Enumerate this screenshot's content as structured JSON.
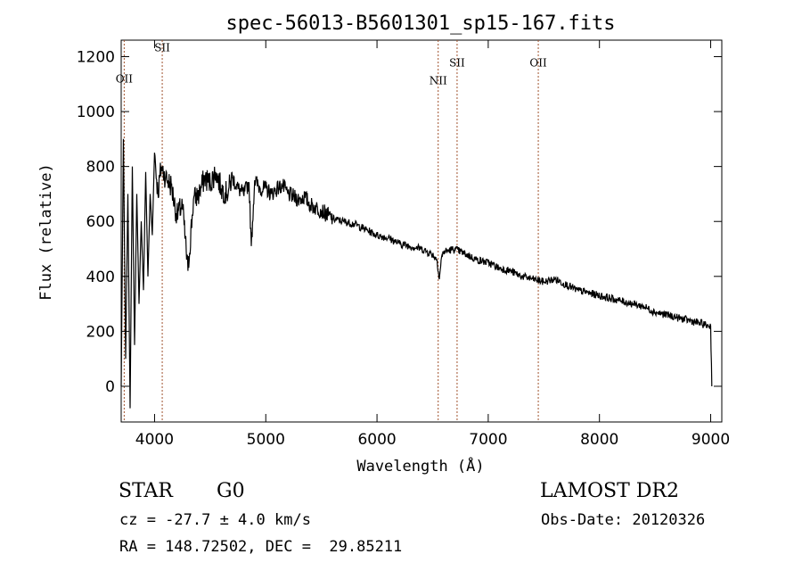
{
  "chart_data": {
    "type": "line",
    "title": "spec-56013-B5601301_sp15-167.fits",
    "xlabel": "Wavelength (Å)",
    "ylabel": "Flux (relative)",
    "xlim": [
      3700,
      9100
    ],
    "ylim": [
      -130,
      1260
    ],
    "xticks": [
      4000,
      5000,
      6000,
      7000,
      8000,
      9000
    ],
    "yticks": [
      0,
      200,
      400,
      600,
      800,
      1000,
      1200
    ],
    "lines": [
      {
        "label": "OII",
        "x": 3727,
        "ylab": 1105
      },
      {
        "label": "SII",
        "x": 4069,
        "ylab": 1220
      },
      {
        "label": "NII",
        "x": 6550,
        "ylab": 1100
      },
      {
        "label": "SII",
        "x": 6720,
        "ylab": 1165
      },
      {
        "label": "OII",
        "x": 7450,
        "ylab": 1165
      }
    ],
    "series": [
      {
        "x": [
          3700,
          3720,
          3740,
          3760,
          3780,
          3800,
          3820,
          3840,
          3860,
          3880,
          3900,
          3920,
          3940,
          3960,
          3980,
          4000,
          4030,
          4060,
          4100,
          4150,
          4200,
          4250,
          4300,
          4350,
          4400,
          4450,
          4500,
          4550,
          4600,
          4650,
          4700,
          4750,
          4800,
          4850,
          4870,
          4900,
          4950,
          5000,
          5050,
          5100,
          5150,
          5200,
          5250,
          5300,
          5350,
          5400,
          5450,
          5500,
          5600,
          5700,
          5800,
          5900,
          6000,
          6100,
          6200,
          6300,
          6400,
          6500,
          6540,
          6560,
          6580,
          6600,
          6700,
          6800,
          6900,
          7000,
          7100,
          7200,
          7300,
          7400,
          7500,
          7600,
          7700,
          7800,
          7900,
          8000,
          8100,
          8200,
          8300,
          8400,
          8500,
          8600,
          8700,
          8800,
          8900,
          8980,
          9000,
          9010
        ],
        "y": [
          0,
          900,
          100,
          700,
          -80,
          800,
          150,
          700,
          300,
          600,
          350,
          780,
          400,
          700,
          550,
          850,
          700,
          800,
          760,
          730,
          620,
          660,
          420,
          680,
          700,
          760,
          740,
          780,
          720,
          700,
          760,
          720,
          700,
          740,
          510,
          750,
          720,
          720,
          700,
          720,
          730,
          700,
          690,
          680,
          690,
          660,
          650,
          640,
          610,
          600,
          590,
          570,
          550,
          540,
          520,
          510,
          500,
          480,
          460,
          390,
          470,
          490,
          500,
          480,
          460,
          450,
          430,
          420,
          400,
          390,
          380,
          390,
          370,
          350,
          340,
          330,
          320,
          310,
          300,
          290,
          270,
          260,
          250,
          240,
          230,
          220,
          220,
          0
        ]
      }
    ]
  },
  "info": {
    "object_class": "STAR",
    "subclass": "G0",
    "survey": "LAMOST DR2",
    "cz": "cz = -27.7 ± 4.0 km/s",
    "obs_date": "Obs-Date: 20120326",
    "coords": "RA = 148.72502, DEC =  29.85211"
  }
}
